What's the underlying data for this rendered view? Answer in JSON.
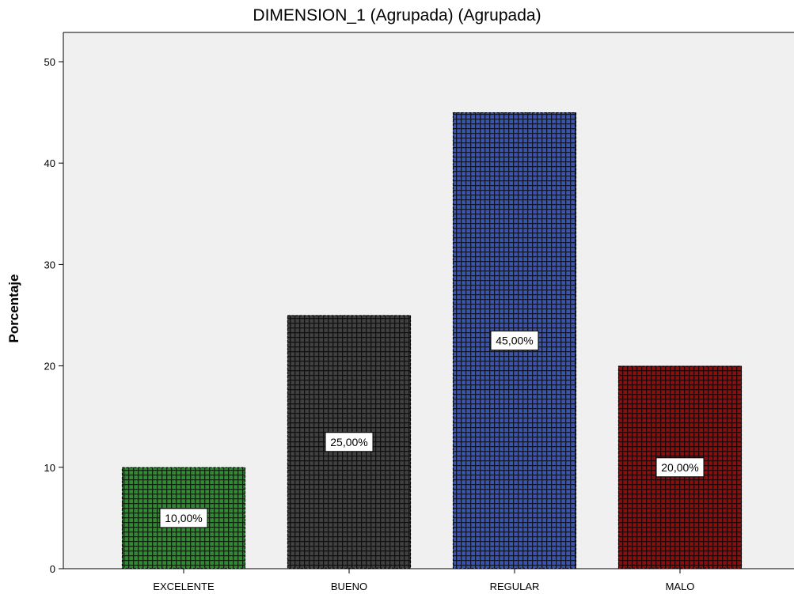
{
  "chart_data": {
    "type": "bar",
    "title": "DIMENSION_1 (Agrupada) (Agrupada)",
    "xlabel": "",
    "ylabel": "Porcentaje",
    "categories": [
      "EXCELENTE",
      "BUENO",
      "REGULAR",
      "MALO"
    ],
    "values": [
      10,
      25,
      45,
      20
    ],
    "data_labels": [
      "10,00%",
      "25,00%",
      "45,00%",
      "20,00%"
    ],
    "colors": [
      "#2e8b2e",
      "#404040",
      "#3a55b0",
      "#8b0e0e"
    ],
    "ylim": [
      0,
      52
    ],
    "yticks": [
      0,
      10,
      20,
      30,
      40,
      50
    ],
    "grid": false,
    "plot_background": "#f0f0f0"
  }
}
